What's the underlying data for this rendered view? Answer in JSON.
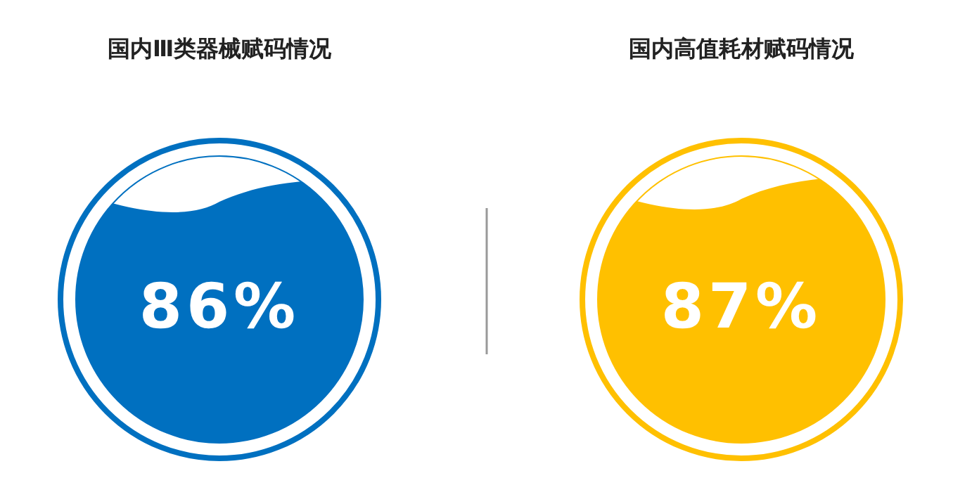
{
  "chart_data": [
    {
      "type": "other",
      "title": "国内Ⅲ类器械赋码情况",
      "values": [
        86
      ],
      "value_labels": [
        "86%"
      ],
      "color": "#0070c0"
    },
    {
      "type": "other",
      "title": "国内高值耗材赋码情况",
      "values": [
        87
      ],
      "value_labels": [
        "87%"
      ],
      "color": "#ffc000"
    }
  ]
}
